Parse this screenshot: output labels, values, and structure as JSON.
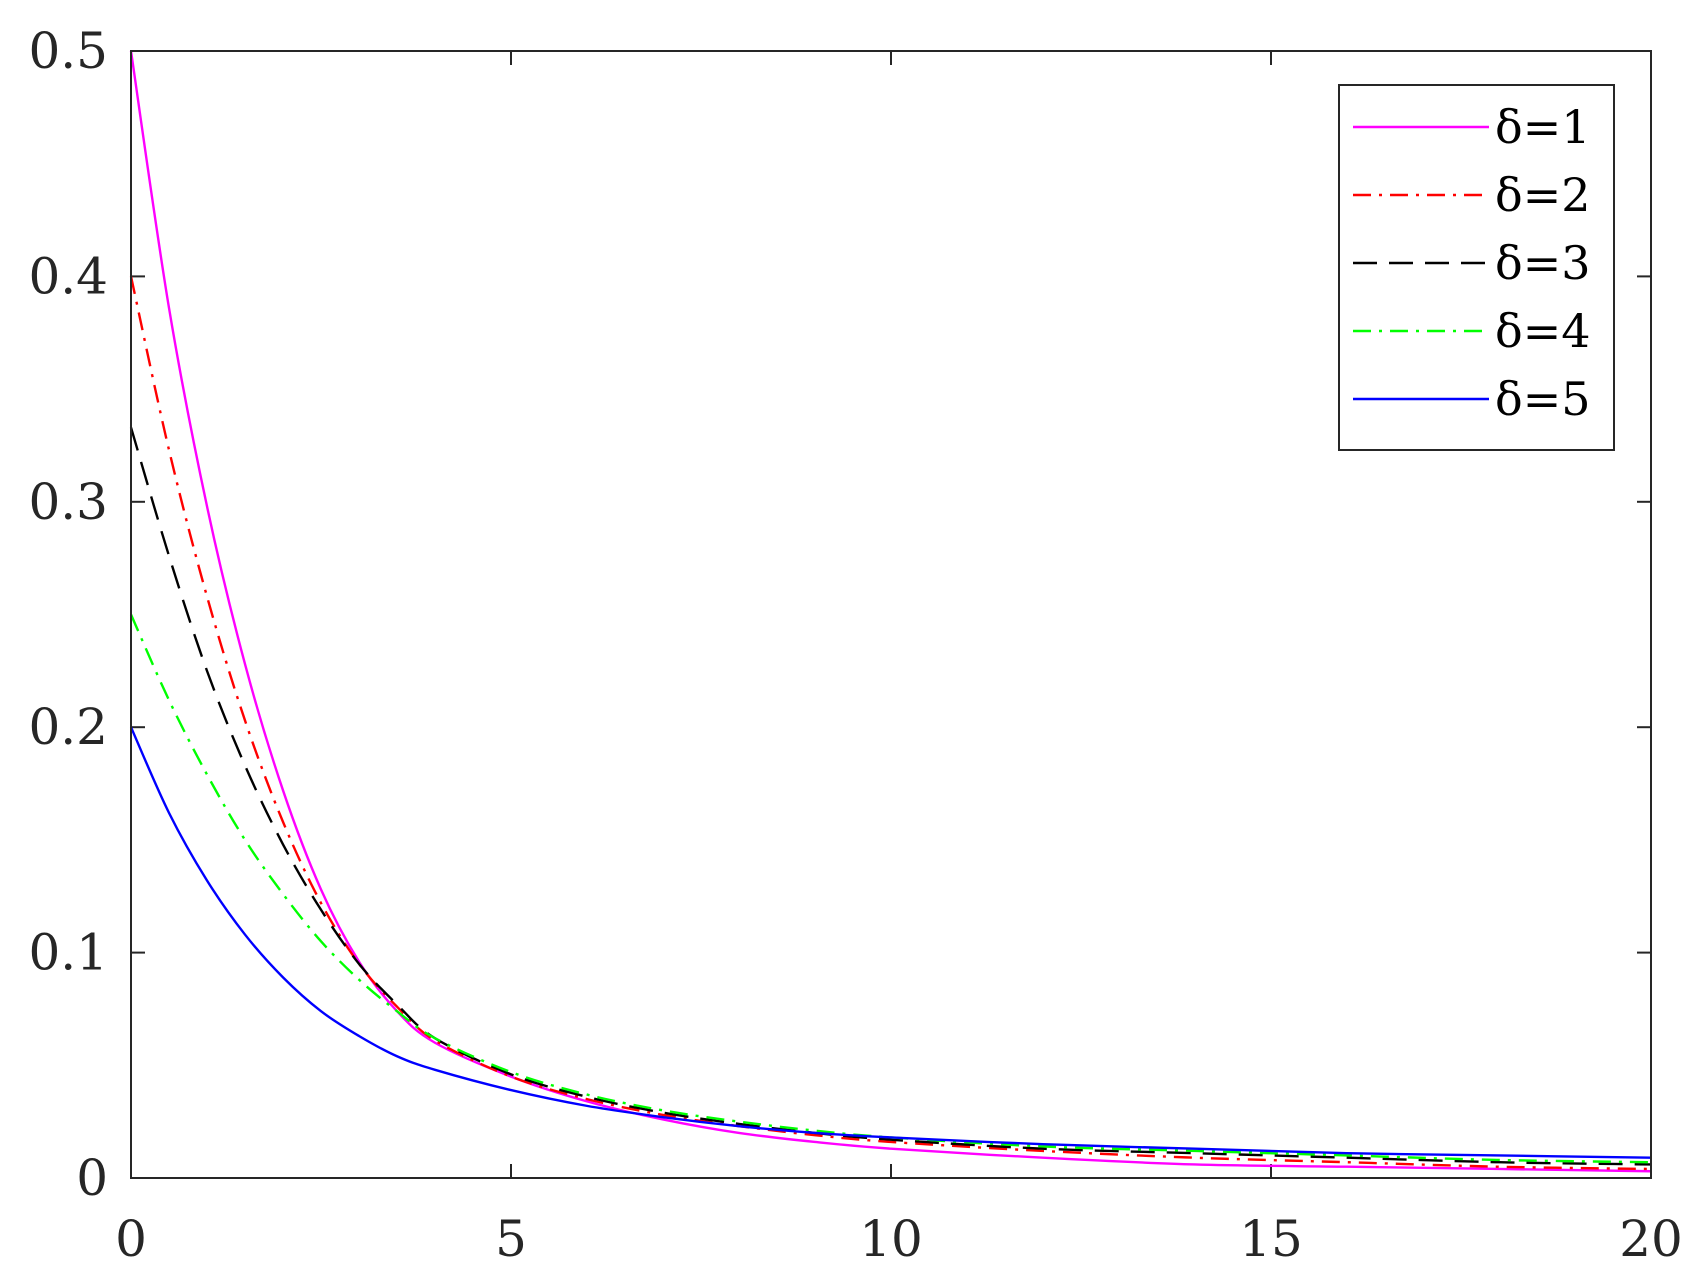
{
  "chart_data": {
    "type": "line",
    "title": "",
    "xlabel": "",
    "ylabel": "",
    "xlim": [
      0,
      20
    ],
    "ylim": [
      0,
      0.5
    ],
    "xticks": [
      0,
      5,
      10,
      15,
      20
    ],
    "xtick_labels": [
      "0",
      "5",
      "10",
      "15",
      "20"
    ],
    "yticks": [
      0,
      0.1,
      0.2,
      0.3,
      0.4,
      0.5
    ],
    "ytick_labels": [
      "0",
      "0.1",
      "0.2",
      "0.3",
      "0.4",
      "0.5"
    ],
    "grid": false,
    "legend_position": "top-right",
    "x": [
      0,
      0.5,
      1,
      1.5,
      2,
      2.5,
      3,
      3.5,
      4,
      5,
      6,
      7,
      8,
      9,
      10,
      12,
      14,
      16,
      18,
      20
    ],
    "series": [
      {
        "name": "δ=1",
        "color": "#ff00ff",
        "dash": "solid",
        "values": [
          0.5,
          0.386,
          0.298,
          0.228,
          0.172,
          0.128,
          0.096,
          0.074,
          0.06,
          0.045,
          0.034,
          0.026,
          0.02,
          0.016,
          0.013,
          0.009,
          0.006,
          0.005,
          0.004,
          0.003
        ]
      },
      {
        "name": "δ=2",
        "color": "#ff0000",
        "dash": "dashdot",
        "values": [
          0.4,
          0.323,
          0.258,
          0.203,
          0.158,
          0.122,
          0.095,
          0.076,
          0.061,
          0.045,
          0.035,
          0.028,
          0.023,
          0.019,
          0.016,
          0.012,
          0.009,
          0.007,
          0.005,
          0.004
        ]
      },
      {
        "name": "δ=3",
        "color": "#000000",
        "dash": "dashed",
        "values": [
          0.333,
          0.276,
          0.225,
          0.183,
          0.148,
          0.119,
          0.095,
          0.077,
          0.062,
          0.046,
          0.036,
          0.029,
          0.024,
          0.02,
          0.017,
          0.013,
          0.011,
          0.009,
          0.007,
          0.006
        ]
      },
      {
        "name": "δ=4",
        "color": "#00ff00",
        "dash": "dashdot",
        "values": [
          0.25,
          0.212,
          0.179,
          0.15,
          0.126,
          0.105,
          0.088,
          0.074,
          0.062,
          0.047,
          0.037,
          0.03,
          0.025,
          0.021,
          0.018,
          0.014,
          0.012,
          0.01,
          0.008,
          0.007
        ]
      },
      {
        "name": "δ=5",
        "color": "#0000ff",
        "dash": "solid",
        "values": [
          0.2,
          0.162,
          0.132,
          0.108,
          0.089,
          0.074,
          0.063,
          0.054,
          0.048,
          0.039,
          0.032,
          0.027,
          0.023,
          0.02,
          0.018,
          0.015,
          0.013,
          0.011,
          0.01,
          0.009
        ]
      }
    ]
  }
}
